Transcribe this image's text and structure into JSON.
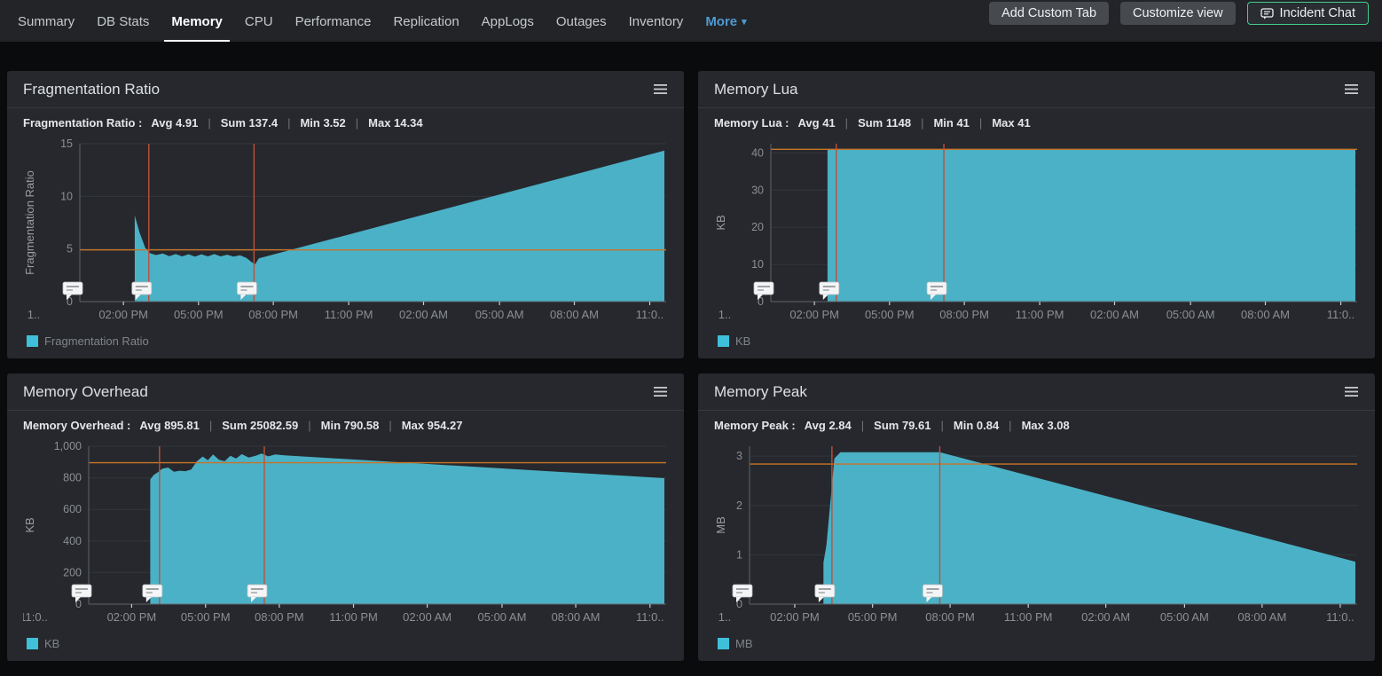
{
  "nav": {
    "tabs": [
      "Summary",
      "DB Stats",
      "Memory",
      "CPU",
      "Performance",
      "Replication",
      "AppLogs",
      "Outages",
      "Inventory"
    ],
    "active_tab": "Memory",
    "more_tab": "More",
    "actions": [
      {
        "label": "Add Custom Tab"
      },
      {
        "label": "Customize view"
      },
      {
        "label": "Incident Chat"
      }
    ]
  },
  "colors": {
    "area_teal": "#4bb1c6",
    "legend_teal": "#3ec0da",
    "threshold_orange": "#c97427",
    "annotation_red": "#bf4f3b",
    "panel_bg": "#26282d",
    "page_bg": "#0a0b0d",
    "incident_chat_border_green": "#41cf8f"
  },
  "chart_data": [
    {
      "type": "area",
      "title": "Fragmentation Ratio",
      "metric_label": "Fragmentation Ratio :",
      "stats": [
        {
          "label": "Avg",
          "value": "4.91"
        },
        {
          "label": "Sum",
          "value": "137.4"
        },
        {
          "label": "Min",
          "value": "3.52"
        },
        {
          "label": "Max",
          "value": "14.34"
        }
      ],
      "ylabel": "Fragmentation Ratio",
      "legend": "Fragmentation Ratio",
      "y_ticks": [
        0,
        5,
        10,
        15
      ],
      "y_tick_labels": [
        "0",
        "5",
        "10",
        "15"
      ],
      "y_max": 15,
      "x_labels": [
        "1..",
        "02:00 PM",
        "05:00 PM",
        "08:00 PM",
        "11:00 PM",
        "02:00 AM",
        "05:00 AM",
        "08:00 AM",
        "11:0.."
      ],
      "threshold": 4.91,
      "annotation_lines_x": [
        0.118,
        0.298
      ],
      "annotation_markers_x": [
        0,
        0.118,
        0.298
      ],
      "series": {
        "name": "Fragmentation Ratio",
        "points_x_fraction_value": [
          [
            0.094,
            8.2
          ],
          [
            0.102,
            6.6
          ],
          [
            0.112,
            5.1
          ],
          [
            0.12,
            4.6
          ],
          [
            0.13,
            4.42
          ],
          [
            0.142,
            4.58
          ],
          [
            0.153,
            4.32
          ],
          [
            0.164,
            4.52
          ],
          [
            0.175,
            4.3
          ],
          [
            0.186,
            4.5
          ],
          [
            0.197,
            4.28
          ],
          [
            0.208,
            4.5
          ],
          [
            0.219,
            4.3
          ],
          [
            0.23,
            4.52
          ],
          [
            0.241,
            4.3
          ],
          [
            0.252,
            4.46
          ],
          [
            0.263,
            4.27
          ],
          [
            0.274,
            4.4
          ],
          [
            0.285,
            4.15
          ],
          [
            0.294,
            3.75
          ],
          [
            0.3,
            3.55
          ],
          [
            0.306,
            4.1
          ],
          [
            1.0,
            14.34
          ]
        ]
      }
    },
    {
      "type": "area",
      "title": "Memory Lua",
      "metric_label": "Memory Lua :",
      "stats": [
        {
          "label": "Avg",
          "value": "41"
        },
        {
          "label": "Sum",
          "value": "1148"
        },
        {
          "label": "Min",
          "value": "41"
        },
        {
          "label": "Max",
          "value": "41"
        }
      ],
      "ylabel": "KB",
      "legend": "KB",
      "y_ticks": [
        0,
        10,
        20,
        30,
        40
      ],
      "y_tick_labels": [
        "0",
        "10",
        "20",
        "30",
        "40"
      ],
      "y_max": 42.5,
      "x_labels": [
        "1..",
        "02:00 PM",
        "05:00 PM",
        "08:00 PM",
        "11:00 PM",
        "02:00 AM",
        "05:00 AM",
        "08:00 AM",
        "11:0.."
      ],
      "threshold": 41,
      "annotation_lines_x": [
        0.112,
        0.296
      ],
      "annotation_markers_x": [
        0,
        0.112,
        0.296
      ],
      "series": {
        "name": "KB",
        "points_x_fraction_value": [
          [
            0.097,
            41
          ],
          [
            1.0,
            41
          ]
        ]
      }
    },
    {
      "type": "area",
      "title": "Memory Overhead",
      "metric_label": "Memory Overhead :",
      "stats": [
        {
          "label": "Avg",
          "value": "895.81"
        },
        {
          "label": "Sum",
          "value": "25082.59"
        },
        {
          "label": "Min",
          "value": "790.58"
        },
        {
          "label": "Max",
          "value": "954.27"
        }
      ],
      "ylabel": "KB",
      "legend": "KB",
      "y_ticks": [
        0,
        200,
        400,
        600,
        800,
        1000
      ],
      "y_tick_labels": [
        "0",
        "200",
        "400",
        "600",
        "800",
        "1,000"
      ],
      "y_max": 1000,
      "x_labels": [
        "11:0..",
        "02:00 PM",
        "05:00 PM",
        "08:00 PM",
        "11:00 PM",
        "02:00 AM",
        "05:00 AM",
        "08:00 AM",
        "11:0.."
      ],
      "threshold": 895.81,
      "annotation_lines_x": [
        0.123,
        0.305
      ],
      "annotation_markers_x": [
        0,
        0.123,
        0.305
      ],
      "series": {
        "name": "KB",
        "points_x_fraction_value": [
          [
            0.107,
            790
          ],
          [
            0.113,
            818
          ],
          [
            0.12,
            835
          ],
          [
            0.128,
            858
          ],
          [
            0.138,
            865
          ],
          [
            0.148,
            838
          ],
          [
            0.158,
            845
          ],
          [
            0.168,
            842
          ],
          [
            0.178,
            852
          ],
          [
            0.188,
            905
          ],
          [
            0.198,
            935
          ],
          [
            0.207,
            912
          ],
          [
            0.216,
            948
          ],
          [
            0.226,
            915
          ],
          [
            0.236,
            905
          ],
          [
            0.246,
            940
          ],
          [
            0.256,
            922
          ],
          [
            0.266,
            950
          ],
          [
            0.278,
            928
          ],
          [
            0.29,
            940
          ],
          [
            0.3,
            954
          ],
          [
            0.312,
            936
          ],
          [
            0.324,
            948
          ],
          [
            0.34,
            942
          ],
          [
            1.0,
            798
          ]
        ]
      }
    },
    {
      "type": "area",
      "title": "Memory Peak",
      "metric_label": "Memory Peak :",
      "stats": [
        {
          "label": "Avg",
          "value": "2.84"
        },
        {
          "label": "Sum",
          "value": "79.61"
        },
        {
          "label": "Min",
          "value": "0.84"
        },
        {
          "label": "Max",
          "value": "3.08"
        }
      ],
      "ylabel": "MB",
      "legend": "MB",
      "y_ticks": [
        0,
        1,
        2,
        3
      ],
      "y_tick_labels": [
        "0",
        "1",
        "2",
        "3"
      ],
      "y_max": 3.2,
      "x_labels": [
        "1..",
        "02:00 PM",
        "05:00 PM",
        "08:00 PM",
        "11:00 PM",
        "02:00 AM",
        "05:00 AM",
        "08:00 AM",
        "11:0.."
      ],
      "threshold": 2.84,
      "annotation_lines_x": [
        0.136,
        0.314
      ],
      "annotation_markers_x": [
        0,
        0.136,
        0.314
      ],
      "series": {
        "name": "MB",
        "points_x_fraction_value": [
          [
            0.122,
            0.84
          ],
          [
            0.127,
            1.2
          ],
          [
            0.14,
            2.95
          ],
          [
            0.15,
            3.08
          ],
          [
            0.314,
            3.08
          ],
          [
            1.0,
            0.86
          ]
        ]
      }
    }
  ]
}
